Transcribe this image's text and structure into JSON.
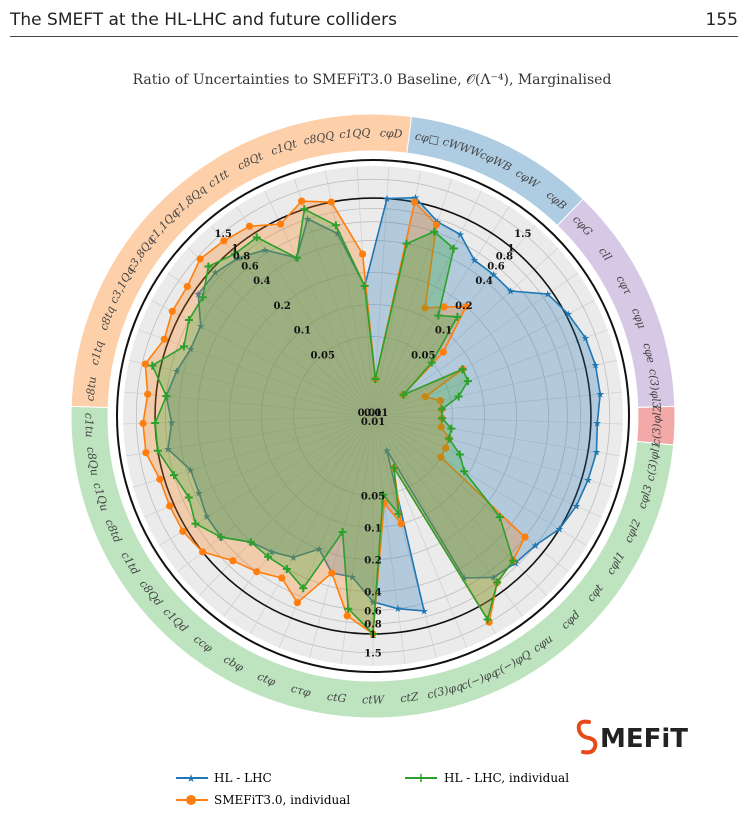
{
  "page": {
    "running_title": "The SMEFT at the HL-LHC and future colliders",
    "page_number": "155"
  },
  "chart_data": {
    "type": "radar",
    "title": "Ratio of Uncertainties to SMEFiT3.0 Baseline, 𝒪(Λ⁻⁴), Marginalised",
    "radial_scale": "log",
    "radial_ticks": [
      "0.01",
      "0.05",
      "0.1",
      "0.2",
      "0.4",
      "0.6",
      "0.8",
      "1",
      "1.5"
    ],
    "radial_range": [
      0.01,
      2.0
    ],
    "reference_circle": 1,
    "grid": true,
    "legend_position": "bottom",
    "groups": [
      {
        "color": "#aecde3",
        "count": 6
      },
      {
        "color": "#d7c8e6",
        "count": 6
      },
      {
        "color": "#f4a9a9",
        "count": 1
      },
      {
        "color": "#bde3bf",
        "count": 24
      },
      {
        "color": "#fdd0aa",
        "count": 13
      }
    ],
    "categories": [
      "cφD",
      "cφ□",
      "cWWW",
      "cφWB",
      "cφW",
      "cφB",
      "cφG",
      "cll",
      "cφτ",
      "cφμ",
      "cφe",
      "c(3)φl3",
      "c(3)φl2",
      "c(3)φl1",
      "cφl3",
      "cφl2",
      "cφl1",
      "cφt",
      "cφd",
      "cφu",
      "c(−)φQ",
      "c(−)φq",
      "c(3)φq",
      "ctZ",
      "ctW",
      "ctG",
      "cτφ",
      "ctφ",
      "cbφ",
      "ccφ",
      "c1Qd",
      "c8Qd",
      "c1td",
      "c8td",
      "c1Qu",
      "c8Qu",
      "c1tu",
      "c8tu",
      "c1tq",
      "c8tq",
      "c3,1Qq",
      "c3,8Qq",
      "c1,1Qq",
      "c1,8Qq",
      "c1tt",
      "c8Qt",
      "c1Qt",
      "c8QQ",
      "c1QQ"
    ],
    "series": [
      {
        "name": "HL - LHC",
        "color": "#1f77b4",
        "marker": "star",
        "values": [
          1.0,
          1.1,
          0.75,
          0.7,
          0.5,
          0.5,
          0.5,
          0.9,
          1.05,
          1.2,
          1.25,
          1.25,
          1.15,
          1.2,
          1.15,
          1.1,
          1.0,
          0.8,
          0.75,
          0.7,
          0.5,
          0.02,
          0.7,
          0.6,
          0.5,
          0.3,
          0.3,
          0.2,
          0.3,
          0.35,
          0.4,
          0.6,
          0.6,
          0.55,
          0.55,
          0.8,
          0.7,
          0.8,
          0.7,
          0.6,
          0.6,
          0.9,
          0.9,
          0.8,
          0.65,
          0.4,
          0.8,
          0.5,
          0.15
        ]
      },
      {
        "name": "SMEFiT3.0, individual",
        "color": "#ff7f0e",
        "marker": "circle",
        "values": [
          0.02,
          1.0,
          0.7,
          0.12,
          0.15,
          0.2,
          0.07,
          0.02,
          0.08,
          0.03,
          0.04,
          0.04,
          0.04,
          0.04,
          0.05,
          0.05,
          0.05,
          0.6,
          0.7,
          0.8,
          1.5,
          0.03,
          0.1,
          0.06,
          1.0,
          0.7,
          0.3,
          0.7,
          0.5,
          0.6,
          0.7,
          1.0,
          1.1,
          1.1,
          1.1,
          1.3,
          1.3,
          1.2,
          1.4,
          1.1,
          1.2,
          1.2,
          1.4,
          1.3,
          1.2,
          0.9,
          1.2,
          1.0,
          0.3
        ]
      },
      {
        "name": "HL - LHC, individual",
        "color": "#2ca02c",
        "marker": "plus",
        "values": [
          0.02,
          0.4,
          0.6,
          0.5,
          0.12,
          0.15,
          0.05,
          0.02,
          0.08,
          0.08,
          0.06,
          0.04,
          0.04,
          0.05,
          0.05,
          0.07,
          0.09,
          0.3,
          0.7,
          0.8,
          1.4,
          0.03,
          0.08,
          0.05,
          1.0,
          0.6,
          0.12,
          0.5,
          0.4,
          0.4,
          0.4,
          0.6,
          0.8,
          0.7,
          0.8,
          1.0,
          1.0,
          0.8,
          1.2,
          0.7,
          0.8,
          0.8,
          1.1,
          0.9,
          0.9,
          0.4,
          1.0,
          0.6,
          0.15
        ]
      }
    ]
  },
  "logo": {
    "text": "MEFiT",
    "accent_color": "#e64a19"
  }
}
